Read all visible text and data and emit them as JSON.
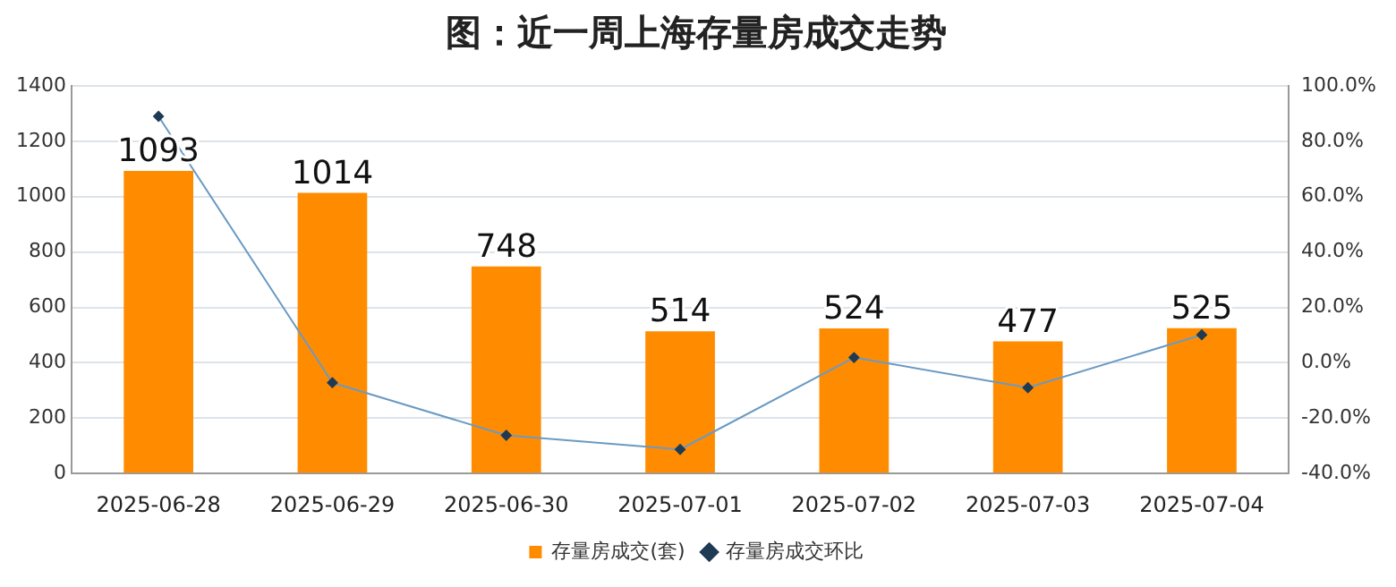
{
  "chart_data": {
    "type": "bar",
    "title": "图：近一周上海存量房成交走势",
    "categories": [
      "2025-06-28",
      "2025-06-29",
      "2025-06-30",
      "2025-07-01",
      "2025-07-02",
      "2025-07-03",
      "2025-07-04"
    ],
    "series": [
      {
        "name": "存量房成交(套)",
        "color": "#ff8c00",
        "values": [
          1093,
          1014,
          748,
          514,
          524,
          477,
          525
        ],
        "value_labels": [
          "1093",
          "1014",
          "748",
          "514",
          "524",
          "477",
          "525"
        ]
      },
      {
        "name": "存量房成交环比",
        "type": "line",
        "axis": "y2",
        "color": "#6a9ac4",
        "marker": "diamond",
        "values": [
          89.0,
          -7.2,
          -26.2,
          -31.3,
          1.9,
          -9.0,
          10.1
        ]
      }
    ],
    "ylim": [
      0,
      1400
    ],
    "yticks": [
      0,
      200,
      400,
      600,
      800,
      1000,
      1200,
      1400
    ],
    "y2lim": [
      -40,
      100
    ],
    "y2ticks": [
      {
        "value": -40,
        "label": "-40.0%"
      },
      {
        "value": -20,
        "label": "-20.0%"
      },
      {
        "value": 0,
        "label": "0.0%"
      },
      {
        "value": 20,
        "label": "20.0%"
      },
      {
        "value": 40,
        "label": "40.0%"
      },
      {
        "value": 60,
        "label": "60.0%"
      },
      {
        "value": 80,
        "label": "80.0%"
      },
      {
        "value": 100,
        "label": "100.0%"
      }
    ],
    "grid": "y",
    "legend": "bottom"
  }
}
